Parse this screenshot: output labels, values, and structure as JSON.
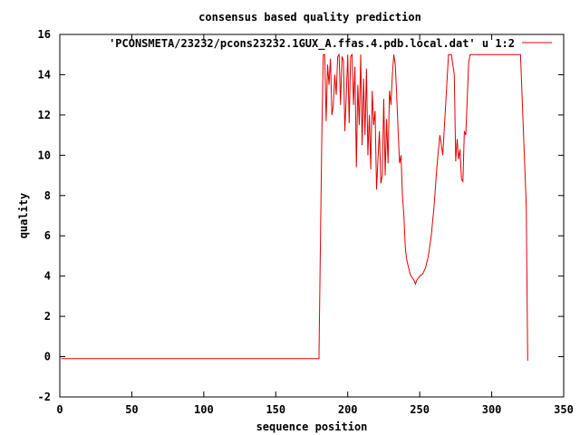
{
  "chart_data": {
    "type": "line",
    "title": "consensus based quality prediction",
    "xlabel": "sequence position",
    "ylabel": "quality",
    "xlim": [
      0,
      350
    ],
    "ylim": [
      -2,
      16
    ],
    "xticks": [
      0,
      50,
      100,
      150,
      200,
      250,
      300,
      350
    ],
    "yticks": [
      -2,
      0,
      2,
      4,
      6,
      8,
      10,
      12,
      14,
      16
    ],
    "grid": false,
    "legend_position": "top-right",
    "series_color": "#e00000",
    "series": [
      {
        "name": "'PCONSMETA/23232/pcons23232.1GUX_A.ffas.4.pdb.local.dat' u 1:2",
        "x": [
          1,
          180,
          181,
          182,
          183,
          184,
          185,
          186,
          187,
          188,
          189,
          190,
          191,
          192,
          193,
          194,
          195,
          196,
          197,
          198,
          199,
          200,
          201,
          202,
          203,
          204,
          205,
          206,
          207,
          208,
          209,
          210,
          211,
          212,
          213,
          214,
          215,
          216,
          217,
          218,
          219,
          220,
          221,
          222,
          223,
          224,
          225,
          226,
          227,
          228,
          229,
          230,
          231,
          232,
          233,
          234,
          235,
          236,
          237,
          238,
          239,
          240,
          241,
          242,
          243,
          244,
          245,
          246,
          247,
          248,
          249,
          250,
          252,
          254,
          256,
          258,
          260,
          262,
          264,
          266,
          268,
          270,
          272,
          274,
          275,
          276,
          277,
          278,
          279,
          280,
          281,
          282,
          283,
          284,
          285,
          286,
          287,
          288,
          290,
          292,
          300,
          310,
          320,
          324,
          325
        ],
        "y": [
          -0.1,
          -0.1,
          5.5,
          11,
          15,
          15,
          11.7,
          14.5,
          13.5,
          14.8,
          12.0,
          12.5,
          14.0,
          13.0,
          14.9,
          15,
          12.5,
          14.9,
          14.7,
          11.2,
          13.0,
          15,
          11.6,
          14.9,
          15,
          12.5,
          14.4,
          9.4,
          13.5,
          11.5,
          15,
          10.5,
          13.8,
          11.0,
          14.3,
          10.0,
          12.0,
          9.3,
          13.2,
          11.5,
          12.2,
          8.3,
          9.8,
          11.2,
          8.6,
          9.0,
          12.8,
          9.0,
          11.8,
          9.6,
          13.2,
          12.5,
          14.0,
          15,
          14.5,
          13.0,
          11.2,
          9.6,
          10.0,
          8.0,
          7.0,
          5.4,
          4.8,
          4.5,
          4.2,
          4.0,
          3.9,
          3.8,
          3.6,
          3.8,
          3.9,
          4.0,
          4.1,
          4.4,
          5.0,
          6.0,
          7.5,
          9.5,
          11.0,
          10.0,
          12.5,
          15,
          15,
          14.0,
          9.7,
          10.8,
          9.8,
          10.3,
          8.8,
          8.7,
          11.2,
          11.0,
          12.8,
          14.6,
          15,
          15,
          15,
          15,
          15,
          15,
          15,
          15,
          15,
          7.5,
          -0.2
        ]
      }
    ]
  }
}
